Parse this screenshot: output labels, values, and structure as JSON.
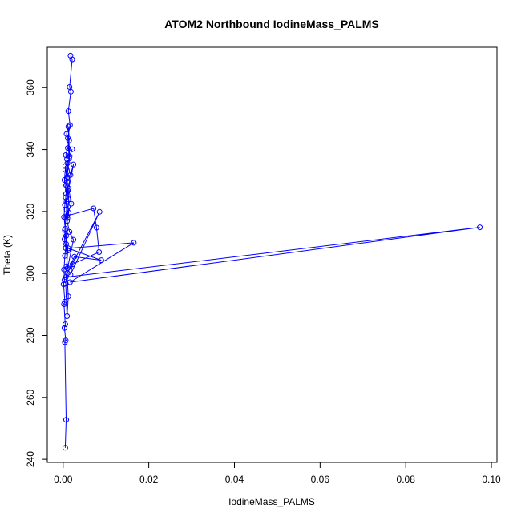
{
  "chart_data": {
    "type": "line",
    "title": "ATOM2 Northbound IodineMass_PALMS",
    "xlabel": "IodineMass_PALMS",
    "ylabel": "Theta (K)",
    "xlim": [
      -0.0037,
      0.1013
    ],
    "ylim": [
      239,
      373
    ],
    "xticks": [
      0.0,
      0.02,
      0.04,
      0.06,
      0.08,
      0.1
    ],
    "xtick_labels": [
      "0.00",
      "0.02",
      "0.04",
      "0.06",
      "0.08",
      "0.10"
    ],
    "yticks": [
      240,
      260,
      280,
      300,
      320,
      340,
      360
    ],
    "ytick_labels": [
      "240",
      "260",
      "280",
      "300",
      "320",
      "340",
      "360"
    ],
    "grid": false,
    "series": [
      {
        "color": "#0000ff",
        "marker": "open-circle",
        "x": [
          0.0005,
          0.0007,
          0.0004,
          0.0006,
          0.0003,
          0.0005,
          0.0002,
          0.0004,
          0.0001,
          0.0003,
          0.0002,
          0.0004,
          0.0006,
          0.0003,
          0.0005,
          0.0002,
          0.0004,
          0.0007,
          0.0003,
          0.0005,
          0.0009,
          0.0006,
          0.0011,
          0.0014,
          0.0008,
          0.0012,
          0.0015,
          0.0021,
          0.001,
          0.0017,
          0.0024,
          0.0013,
          0.0019,
          0.0009,
          0.0071,
          0.0078,
          0.0084,
          0.0022,
          0.0017,
          0.0085,
          0.001,
          0.0026,
          0.0089,
          0.0012,
          0.0165,
          0.0016,
          0.0973,
          0.0006,
          0.0024,
          0.0015,
          0.0009,
          0.0013,
          0.0008,
          0.0011,
          0.0007,
          0.001,
          0.0005,
          0.0009,
          0.0006,
          0.0008,
          0.0004,
          0.0007,
          0.001,
          0.0006,
          0.0009,
          0.0012,
          0.0008,
          0.0011,
          0.0007,
          0.001,
          0.0013,
          0.0009,
          0.0014,
          0.0011,
          0.0016,
          0.0012,
          0.0018,
          0.0015,
          0.0021,
          0.0017
        ],
        "y": [
          243.7,
          252.8,
          277.8,
          278.4,
          282.4,
          283.6,
          290.1,
          290.9,
          296.5,
          297.9,
          301.3,
          305.7,
          308.2,
          311.0,
          314.4,
          318.2,
          322.1,
          325.7,
          330.2,
          333.5,
          336.9,
          338.2,
          340.5,
          342.9,
          345.0,
          347.4,
          337.8,
          340.1,
          335.6,
          331.8,
          335.2,
          327.4,
          322.5,
          318.6,
          321.0,
          314.8,
          306.9,
          303.0,
          299.6,
          319.9,
          300.1,
          305.4,
          304.3,
          308.1,
          309.9,
          297.2,
          314.9,
          298.8,
          310.9,
          313.4,
          316.9,
          319.6,
          323.2,
          326.8,
          328.5,
          331.2,
          334.7,
          329.6,
          324.6,
          320.6,
          314.0,
          309.5,
          301.7,
          296.8,
          286.2,
          292.6,
          302.3,
          307.4,
          312.1,
          317.9,
          323.9,
          330.6,
          337.1,
          343.7,
          347.9,
          352.4,
          358.7,
          360.2,
          369.1,
          370.3
        ]
      }
    ]
  }
}
